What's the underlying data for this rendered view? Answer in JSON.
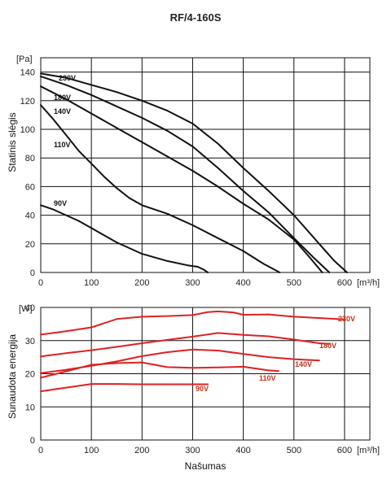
{
  "title": "RF/4-160S",
  "colors": {
    "pressure": "#111111",
    "power": "#e02020",
    "power_axis": "#d02020",
    "power_label": "#c83018"
  },
  "chart_data": [
    {
      "type": "line",
      "title": "RF/4-160S",
      "ylabel": "Statinis slėgis",
      "yunit": "[Pa]",
      "xunit": "[m³/h]",
      "xlim": [
        0,
        650
      ],
      "ylim": [
        0,
        150
      ],
      "xticks": [
        "0",
        "100",
        "200",
        "300",
        "400",
        "500",
        "600"
      ],
      "yticks": [
        "0",
        "20",
        "40",
        "60",
        "80",
        "100",
        "120",
        "140"
      ],
      "grid": true,
      "series": [
        {
          "name": "230V",
          "x": [
            0,
            50,
            100,
            150,
            200,
            250,
            300,
            350,
            400,
            450,
            500,
            550,
            580,
            605
          ],
          "y": [
            139,
            136,
            131,
            126,
            120,
            113,
            104,
            90,
            73,
            57,
            40,
            20,
            8,
            0
          ]
        },
        {
          "name": "180V",
          "x": [
            0,
            50,
            100,
            150,
            200,
            250,
            300,
            350,
            400,
            450,
            500,
            540,
            570
          ],
          "y": [
            137,
            131,
            124,
            116,
            108,
            99,
            88,
            73,
            57,
            42,
            24,
            10,
            0
          ]
        },
        {
          "name": "140V",
          "x": [
            0,
            50,
            100,
            150,
            200,
            250,
            300,
            350,
            400,
            450,
            500,
            530,
            556
          ],
          "y": [
            130,
            121,
            111,
            101,
            91,
            81,
            71,
            60,
            48,
            37,
            23,
            11,
            0
          ]
        },
        {
          "name": "110V",
          "x": [
            0,
            25,
            50,
            75,
            100,
            125,
            150,
            175,
            200,
            225,
            250,
            300,
            350,
            400,
            440,
            472
          ],
          "y": [
            117,
            107,
            96,
            85,
            76,
            67,
            59,
            52,
            47,
            44,
            41,
            33,
            24,
            15,
            6,
            0
          ]
        },
        {
          "name": "90V",
          "x": [
            0,
            25,
            50,
            75,
            100,
            125,
            150,
            200,
            250,
            290,
            310,
            322,
            330
          ],
          "y": [
            47,
            44,
            40,
            36,
            31,
            26,
            21,
            13,
            8,
            5,
            4,
            2,
            0
          ]
        }
      ]
    },
    {
      "type": "line",
      "ylabel": "Sunaudota energija",
      "yunit": "[W]",
      "xunit": "[m³/h]",
      "xlabel": "Našumas",
      "xlim": [
        0,
        650
      ],
      "ylim": [
        0,
        40
      ],
      "xticks": [
        "0",
        "100",
        "200",
        "300",
        "400",
        "500",
        "600"
      ],
      "yticks": [
        "0",
        "10",
        "20",
        "30",
        "40"
      ],
      "grid": true,
      "series": [
        {
          "name": "230V",
          "x": [
            0,
            50,
            100,
            150,
            200,
            250,
            300,
            330,
            350,
            380,
            400,
            450,
            500,
            550,
            600
          ],
          "y": [
            31.8,
            32.8,
            34,
            36.5,
            37.2,
            37.4,
            37.7,
            38.6,
            38.8,
            38.5,
            37.8,
            37.9,
            37.2,
            36.8,
            36.4
          ]
        },
        {
          "name": "180V",
          "x": [
            0,
            50,
            100,
            150,
            200,
            250,
            300,
            350,
            400,
            450,
            500,
            550,
            570
          ],
          "y": [
            25.2,
            26.2,
            27.1,
            28.1,
            29.2,
            30.2,
            31.2,
            32.3,
            31.7,
            31.3,
            30.3,
            29.2,
            29
          ]
        },
        {
          "name": "140V",
          "x": [
            0,
            50,
            100,
            150,
            200,
            250,
            300,
            350,
            400,
            450,
            500,
            550
          ],
          "y": [
            20.2,
            21.2,
            22.4,
            23.7,
            25.3,
            26.5,
            27.3,
            27,
            26,
            25,
            24.4,
            24
          ]
        },
        {
          "name": "110V",
          "x": [
            0,
            50,
            100,
            150,
            200,
            250,
            300,
            350,
            400,
            450,
            470
          ],
          "y": [
            18.8,
            20.7,
            22.7,
            23.2,
            23.4,
            22,
            21.8,
            21.9,
            22.1,
            21,
            20.8
          ]
        },
        {
          "name": "90V",
          "x": [
            0,
            50,
            100,
            150,
            200,
            250,
            300,
            330
          ],
          "y": [
            14.7,
            15.8,
            16.9,
            16.9,
            16.8,
            16.8,
            16.8,
            16.8
          ]
        }
      ]
    }
  ]
}
